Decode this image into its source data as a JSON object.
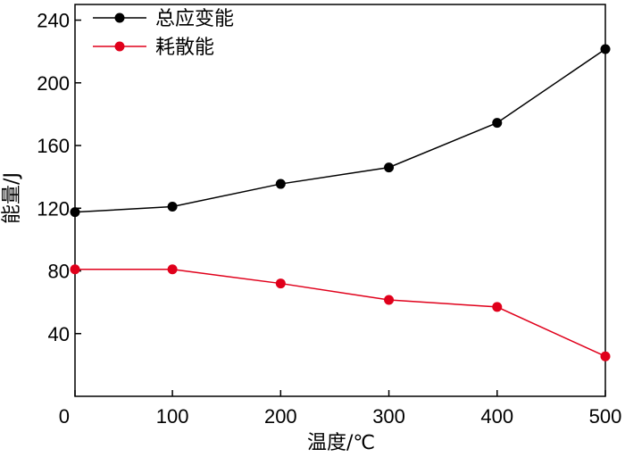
{
  "chart_data": {
    "type": "line",
    "xlabel": "温度/℃",
    "ylabel": "能量/J",
    "xlim": [
      10,
      500
    ],
    "ylim": [
      0,
      250
    ],
    "xticks": [
      0,
      100,
      200,
      300,
      400,
      500
    ],
    "yticks": [
      40,
      80,
      120,
      160,
      200,
      240
    ],
    "x": [
      10,
      100,
      200,
      300,
      400,
      500
    ],
    "series": [
      {
        "name": "总应变能",
        "color": "#000000",
        "values": [
          117.5,
          121,
          135.5,
          146,
          174.5,
          221.5
        ]
      },
      {
        "name": "耗散能",
        "color": "#e0001b",
        "values": [
          81,
          81,
          72,
          61.5,
          57,
          25.5
        ]
      }
    ],
    "legend": "top-left",
    "grid": false
  }
}
